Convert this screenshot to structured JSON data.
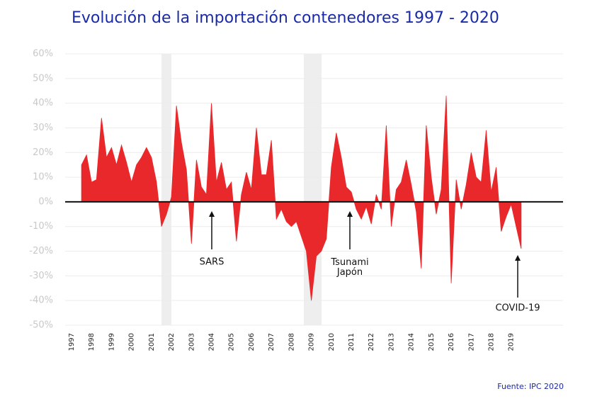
{
  "chart_data": {
    "type": "area",
    "title": "Evolución de la importación contenedores 1997 - 2020",
    "source": "Fuente: IPC 2020",
    "annotations": [
      "SARS",
      "Tsunami\nJapón",
      "COVID-19"
    ],
    "color": "#e8282b",
    "grid": true,
    "x": [
      1997.5,
      1997.75,
      1998,
      1998.25,
      1998.5,
      1998.75,
      1999,
      1999.25,
      1999.5,
      1999.75,
      2000,
      2000.25,
      2000.5,
      2000.75,
      2001,
      2001.25,
      2001.5,
      2001.75,
      2002,
      2002.25,
      2002.5,
      2002.75,
      2003,
      2003.25,
      2003.5,
      2003.75,
      2004,
      2004.25,
      2004.5,
      2004.75,
      2005,
      2005.25,
      2005.5,
      2005.75,
      2006,
      2006.25,
      2006.5,
      2006.75,
      2007,
      2007.25,
      2007.5,
      2007.75,
      2008,
      2008.25,
      2008.5,
      2008.75,
      2009,
      2009.25,
      2009.5,
      2009.75,
      2010,
      2010.25,
      2010.5,
      2010.75,
      2011,
      2011.25,
      2011.5,
      2011.75,
      2012,
      2012.25,
      2012.5,
      2012.75,
      2013,
      2013.25,
      2013.5,
      2013.75,
      2014,
      2014.25,
      2014.5,
      2014.75,
      2015,
      2015.25,
      2015.5,
      2015.75,
      2016,
      2016.25,
      2016.5,
      2016.75,
      2017,
      2017.25,
      2017.5,
      2017.75,
      2018,
      2018.25,
      2018.5,
      2018.75,
      2019,
      2019.25,
      2019.5
    ],
    "values": [
      15,
      19,
      8,
      9,
      34,
      18,
      22,
      15,
      23,
      16,
      8,
      15,
      18,
      22,
      18,
      8,
      -10,
      -5,
      2,
      39,
      24,
      13,
      -17,
      17,
      6,
      3,
      40,
      8,
      16,
      5,
      8,
      -16,
      3,
      12,
      5,
      30,
      11,
      11,
      25,
      -7,
      -3,
      -8,
      -10,
      -8,
      -14,
      -20,
      -40,
      -22,
      -20,
      -15,
      14,
      28,
      18,
      6,
      4,
      -3,
      -7,
      -2,
      -9,
      3,
      -3,
      31,
      -10,
      5,
      8,
      17,
      7,
      -4,
      -27,
      31,
      10,
      -5,
      5,
      43,
      -33,
      9,
      -3,
      7,
      20,
      10,
      8,
      29,
      4,
      14,
      -12,
      -6,
      -1,
      -10,
      -19
    ],
    "xlim": [
      1997,
      2021.6
    ],
    "xticks": [
      1997,
      1998,
      1999,
      2000,
      2001,
      2002,
      2003,
      2004,
      2005,
      2006,
      2007,
      2008,
      2009,
      2010,
      2011,
      2012,
      2013,
      2014,
      2015,
      2016,
      2017,
      2018,
      2019
    ],
    "ylim": [
      -50,
      60
    ],
    "yticks": [
      {
        "value": -50,
        "label": "-50%"
      },
      {
        "value": -40,
        "label": "-40%"
      },
      {
        "value": -30,
        "label": "-30%"
      },
      {
        "value": -20,
        "label": "-20%"
      },
      {
        "value": -10,
        "label": "-10%"
      },
      {
        "value": 0,
        "label": "0%"
      },
      {
        "value": 10,
        "label": "10%"
      },
      {
        "value": 20,
        "label": "20%"
      },
      {
        "value": 30,
        "label": "30%"
      },
      {
        "value": 40,
        "label": "40%"
      },
      {
        "value": 50,
        "label": "50%"
      },
      {
        "value": 60,
        "label": "60%"
      }
    ]
  }
}
